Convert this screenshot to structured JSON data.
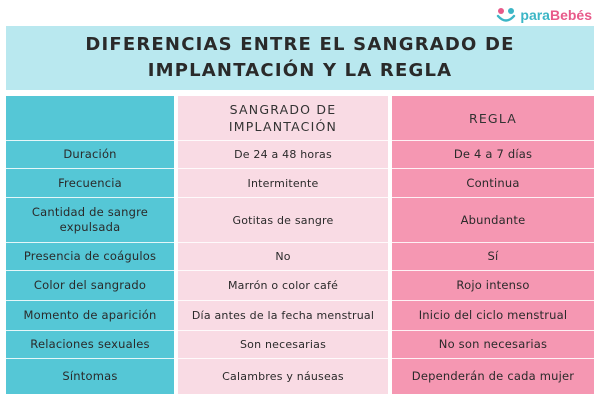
{
  "brand": {
    "part1": "para",
    "part2": "Bebés"
  },
  "title": {
    "line1": "DIFERENCIAS ENTRE EL SANGRADO DE",
    "line2": "IMPLANTACIÓN Y LA REGLA"
  },
  "table": {
    "headers": {
      "col_b_line1": "SANGRADO DE",
      "col_b_line2": "IMPLANTACIÓN",
      "col_c": "REGLA"
    },
    "rows": [
      {
        "label": "Duración",
        "implantacion": "De 24 a 48 horas",
        "regla": "De 4 a 7 días"
      },
      {
        "label": "Frecuencia",
        "implantacion": "Intermitente",
        "regla": "Continua"
      },
      {
        "label": "Cantidad de sangre expulsada",
        "implantacion": "Gotitas de sangre",
        "regla": "Abundante"
      },
      {
        "label": "Presencia de coágulos",
        "implantacion": "No",
        "regla": "Sí"
      },
      {
        "label": "Color del sangrado",
        "implantacion": "Marrón o color café",
        "regla": "Rojo intenso"
      },
      {
        "label": "Momento de aparición",
        "implantacion": "Día antes de la fecha menstrual",
        "regla": "Inicio del ciclo menstrual"
      },
      {
        "label": "Relaciones sexuales",
        "implantacion": "Son necesarias",
        "regla": "No son necesarias"
      },
      {
        "label": "Síntomas",
        "implantacion": "Calambres y náuseas",
        "regla": "Dependerán de cada mujer"
      }
    ]
  },
  "colors": {
    "title_bg": "#b9e8ef",
    "col_label_bg": "#55c7d6",
    "col_implantacion_bg": "#f9dbe4",
    "col_regla_bg": "#f597b2"
  }
}
